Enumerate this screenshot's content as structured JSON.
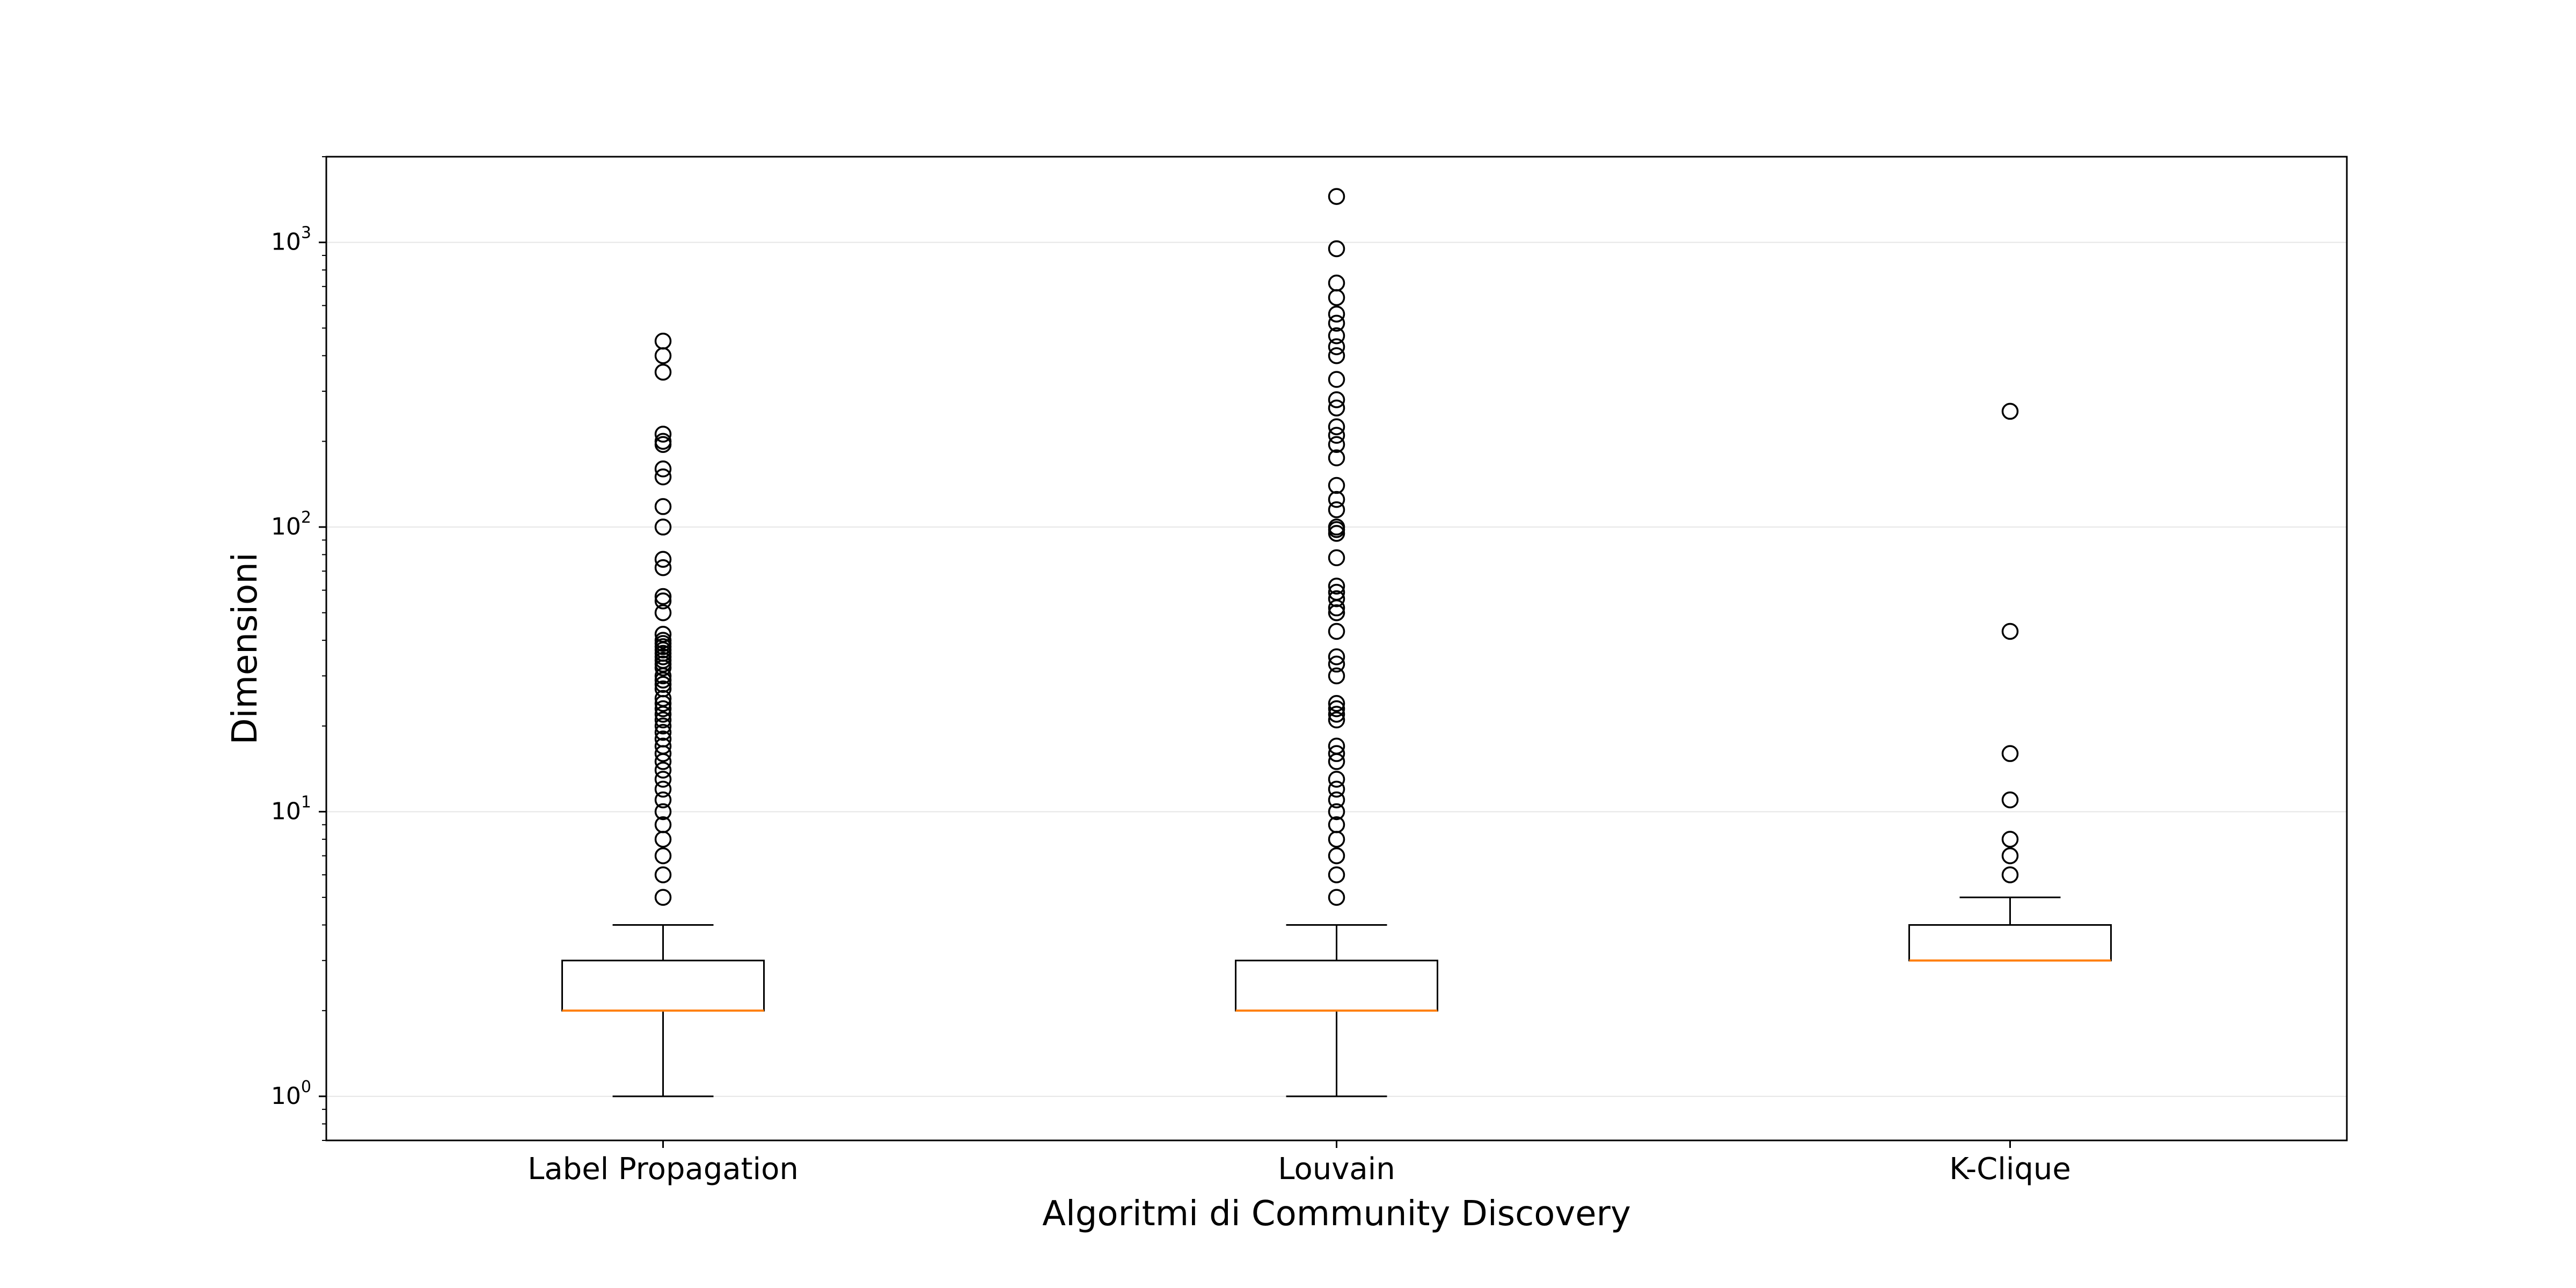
{
  "chart_data": {
    "type": "box",
    "title": "",
    "xlabel": "Algoritmi di Community Discovery",
    "ylabel": "Dimensioni",
    "yscale": "log",
    "ylim": [
      0.7,
      2000
    ],
    "yticks": [
      {
        "value": 1,
        "base": "10",
        "exp": "0"
      },
      {
        "value": 10,
        "base": "10",
        "exp": "1"
      },
      {
        "value": 100,
        "base": "10",
        "exp": "2"
      },
      {
        "value": 1000,
        "base": "10",
        "exp": "3"
      }
    ],
    "grid": true,
    "colors": {
      "box": "#000000",
      "median": "#ff7f0e",
      "grid": "#e6e6e6",
      "flier": "#000000"
    },
    "categories": [
      "Label Propagation",
      "Louvain",
      "K-Clique"
    ],
    "boxes": [
      {
        "name": "Label Propagation",
        "whislo": 1,
        "q1": 2,
        "med": 2,
        "q3": 3,
        "whishi": 4,
        "fliers": [
          5,
          6,
          7,
          8,
          9,
          10,
          11,
          12,
          13,
          14,
          15,
          16,
          17,
          18,
          19,
          20,
          21,
          22,
          23,
          24,
          25,
          27,
          28,
          29,
          30,
          32,
          33,
          34,
          35,
          36,
          37,
          38,
          39,
          40,
          42,
          50,
          55,
          57,
          72,
          77,
          100,
          118,
          150,
          160,
          195,
          200,
          212,
          350,
          400,
          450
        ]
      },
      {
        "name": "Louvain",
        "whislo": 1,
        "q1": 2,
        "med": 2,
        "q3": 3,
        "whishi": 4,
        "fliers": [
          5,
          6,
          7,
          8,
          9,
          10,
          11,
          12,
          13,
          15,
          16,
          17,
          21,
          22,
          23,
          24,
          30,
          33,
          35,
          43,
          50,
          52,
          56,
          59,
          62,
          78,
          95,
          98,
          100,
          115,
          125,
          140,
          175,
          195,
          210,
          225,
          262,
          280,
          330,
          400,
          430,
          470,
          520,
          560,
          640,
          720,
          950,
          1450
        ]
      },
      {
        "name": "K-Clique",
        "whislo": 3,
        "q1": 3,
        "med": 3,
        "q3": 4,
        "whishi": 5,
        "fliers": [
          6,
          7,
          8,
          11,
          16,
          43,
          255
        ]
      }
    ]
  }
}
